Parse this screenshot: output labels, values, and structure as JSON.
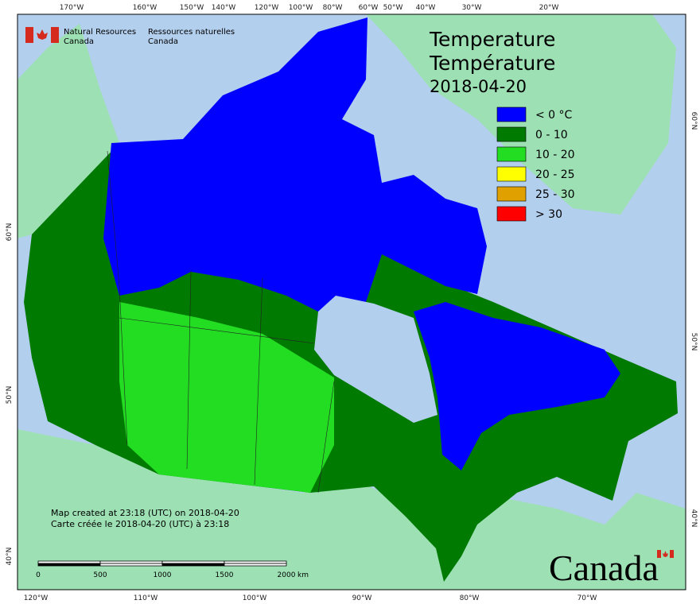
{
  "header": {
    "org_en": "Natural Resources",
    "org_en2": "Canada",
    "org_fr": "Ressources naturelles",
    "org_fr2": "Canada"
  },
  "title": {
    "en": "Temperature",
    "fr": "Température",
    "date": "2018-04-20"
  },
  "legend": [
    {
      "label": "< 0 °C",
      "color": "#0000ff"
    },
    {
      "label": "0 - 10",
      "color": "#007a00"
    },
    {
      "label": "10 - 20",
      "color": "#22dd22"
    },
    {
      "label": "20 - 25",
      "color": "#ffff00"
    },
    {
      "label": "25 - 30",
      "color": "#e0a000"
    },
    {
      "label": "> 30",
      "color": "#ff0000"
    }
  ],
  "top_axis": [
    "170°W",
    "160°W",
    "150°W",
    "140°W",
    "120°W",
    "100°W",
    "80°W",
    "60°W",
    "50°W",
    "40°W",
    "30°W",
    "20°W"
  ],
  "bottom_axis": [
    "120°W",
    "110°W",
    "100°W",
    "90°W",
    "80°W",
    "70°W"
  ],
  "left_axis": [
    "60°N",
    "50°N",
    "40°N"
  ],
  "right_axis": [
    "60°N",
    "50°N",
    "40°N"
  ],
  "notes": [
    "Map created at 23:18 (UTC) on 2018-04-20",
    "Carte créée le 2018-04-20 (UTC) à 23:18"
  ],
  "scale_bar": {
    "labels": [
      "0",
      "500",
      "1000",
      "1500",
      "2000"
    ],
    "unit": "km"
  },
  "wordmark": "Canada"
}
